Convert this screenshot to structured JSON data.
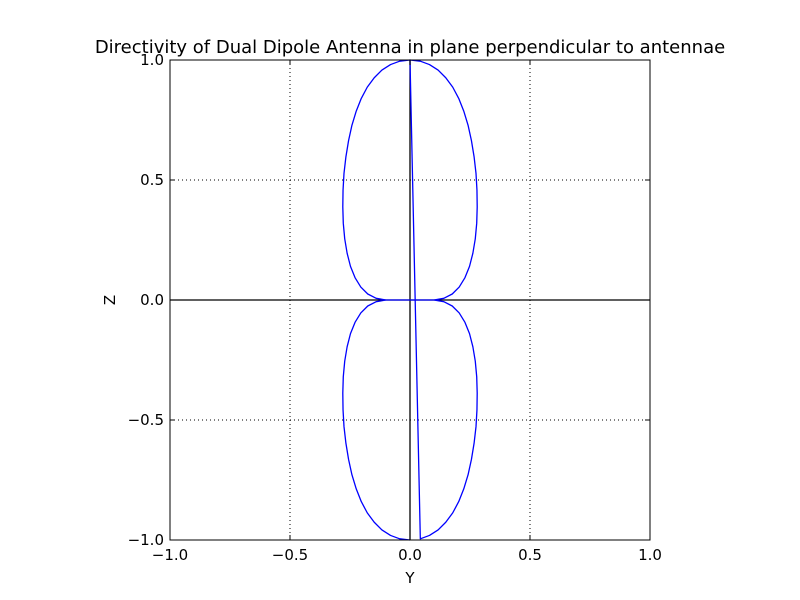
{
  "chart_data": {
    "type": "line",
    "title": "Directivity of Dual Dipole Antenna in plane perpendicular to antennae",
    "xlabel": "Y",
    "ylabel": "Z",
    "xlim": [
      -1.0,
      1.0
    ],
    "ylim": [
      -1.0,
      1.0
    ],
    "xticks": [
      -1.0,
      -0.5,
      0.0,
      0.5,
      1.0
    ],
    "yticks": [
      -1.0,
      -0.5,
      0.0,
      0.5,
      1.0
    ],
    "xtick_labels": [
      "−1.0",
      "−0.5",
      "0.0",
      "0.5",
      "1.0"
    ],
    "ytick_labels": [
      "−1.0",
      "−0.5",
      "0.0",
      "0.5",
      "1.0"
    ],
    "grid": true,
    "grid_style": "dotted",
    "reference_lines": [
      {
        "orientation": "horizontal",
        "value": 0.0,
        "color": "#000000"
      },
      {
        "orientation": "vertical",
        "value": 0.0,
        "color": "#000000"
      }
    ],
    "series": [
      {
        "color": "#0000ff",
        "x": [
          0.0,
          0.043,
          0.081,
          0.117,
          0.149,
          0.178,
          0.203,
          0.224,
          0.242,
          0.256,
          0.267,
          0.275,
          0.279,
          0.28,
          0.278,
          0.272,
          0.262,
          0.248,
          0.229,
          0.205,
          0.176,
          0.141,
          0.1,
          0.053,
          0.0,
          -0.053,
          -0.1,
          -0.141,
          -0.176,
          -0.205,
          -0.229,
          -0.248,
          -0.262,
          -0.272,
          -0.278,
          -0.28,
          -0.279,
          -0.275,
          -0.267,
          -0.256,
          -0.242,
          -0.224,
          -0.203,
          -0.178,
          -0.149,
          -0.117,
          -0.081,
          -0.043,
          0.0,
          0.043,
          0.081,
          0.117,
          0.149,
          0.178,
          0.203,
          0.224,
          0.242,
          0.256,
          0.267,
          0.275,
          0.279,
          0.28,
          0.278,
          0.272,
          0.262,
          0.248,
          0.229,
          0.205,
          0.176,
          0.141,
          0.1,
          0.053,
          0.0,
          -0.053,
          -0.1,
          -0.141,
          -0.176,
          -0.205,
          -0.229,
          -0.248,
          -0.262,
          -0.272,
          -0.278,
          -0.28,
          -0.279,
          -0.275,
          -0.267,
          -0.256,
          -0.242,
          -0.224,
          -0.203,
          -0.178,
          -0.149,
          -0.117,
          -0.081,
          -0.043,
          0.0
        ],
        "y": [
          1.0,
          0.995,
          0.981,
          0.958,
          0.926,
          0.887,
          0.84,
          0.787,
          0.728,
          0.664,
          0.597,
          0.528,
          0.458,
          0.388,
          0.32,
          0.255,
          0.195,
          0.14,
          0.093,
          0.054,
          0.025,
          0.007,
          0.0,
          0.0,
          0.0,
          0.0,
          0.0,
          0.007,
          0.025,
          0.054,
          0.093,
          0.14,
          0.195,
          0.255,
          0.32,
          0.388,
          0.458,
          0.528,
          0.597,
          0.664,
          0.728,
          0.787,
          0.84,
          0.887,
          0.926,
          0.958,
          0.981,
          0.995,
          1.0,
          0.995,
          0.981,
          0.958,
          0.926,
          0.887,
          0.84,
          0.787,
          0.728,
          0.664,
          0.597,
          0.528,
          0.458,
          0.388,
          0.32,
          0.255,
          0.195,
          0.14,
          0.093,
          0.054,
          0.025,
          0.007,
          0.0,
          0.0,
          0.0,
          0.0,
          0.0,
          0.007,
          0.025,
          0.054,
          0.093,
          0.14,
          0.195,
          0.255,
          0.32,
          0.388,
          0.458,
          0.528,
          0.597,
          0.664,
          0.728,
          0.787,
          0.84,
          0.887,
          0.926,
          0.958,
          0.981,
          0.995,
          1.0
        ],
        "y_sign": [
          1,
          1,
          1,
          1,
          1,
          1,
          1,
          1,
          1,
          1,
          1,
          1,
          1,
          1,
          1,
          1,
          1,
          1,
          1,
          1,
          1,
          1,
          1,
          1,
          1,
          1,
          1,
          1,
          1,
          1,
          1,
          1,
          1,
          1,
          1,
          1,
          1,
          1,
          1,
          1,
          1,
          1,
          1,
          1,
          1,
          1,
          1,
          1,
          1,
          -1,
          -1,
          -1,
          -1,
          -1,
          -1,
          -1,
          -1,
          -1,
          -1,
          -1,
          -1,
          -1,
          -1,
          -1,
          -1,
          -1,
          -1,
          -1,
          -1,
          -1,
          -1,
          -1,
          -1,
          -1,
          -1,
          -1,
          -1,
          -1,
          -1,
          -1,
          -1,
          -1,
          -1,
          -1,
          -1,
          -1,
          -1,
          -1,
          -1,
          -1,
          -1,
          -1,
          -1,
          -1,
          -1,
          -1,
          -1
        ]
      }
    ]
  }
}
